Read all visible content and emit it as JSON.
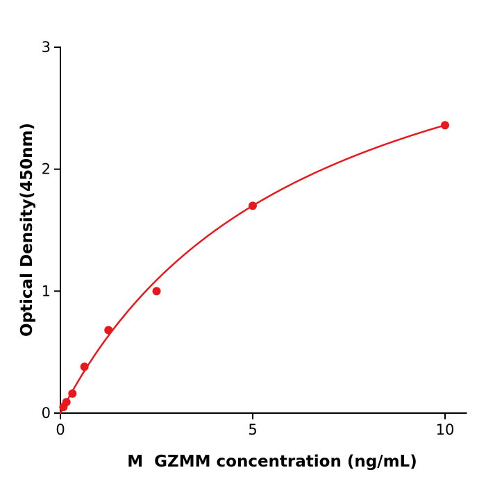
{
  "chart_data": {
    "type": "scatter",
    "title": "",
    "xlabel": "M  GZMM concentration (ng/mL)",
    "ylabel": "Optical Density(450nm)",
    "x": [
      0.078,
      0.156,
      0.313,
      0.625,
      1.25,
      2.5,
      5,
      10
    ],
    "y": [
      0.05,
      0.09,
      0.16,
      0.38,
      0.68,
      1.0,
      1.7,
      2.36
    ],
    "xlim": [
      0,
      10.55
    ],
    "ylim": [
      0,
      3
    ],
    "x_ticks": [
      0,
      5,
      10
    ],
    "x_tick_labels": [
      "0",
      "5",
      "10"
    ],
    "y_ticks": [
      0,
      1,
      2,
      3
    ],
    "y_tick_labels": [
      "0",
      "1",
      "2",
      "3"
    ],
    "grid": "off",
    "legend": "none",
    "marker_color": "#e8191c",
    "line_color": "#e8191c",
    "axis_color": "#000000",
    "fit": {
      "type": "michaelis_menten",
      "a": 3.86,
      "b": 6.35,
      "x_start": 0,
      "x_end": 10
    }
  }
}
